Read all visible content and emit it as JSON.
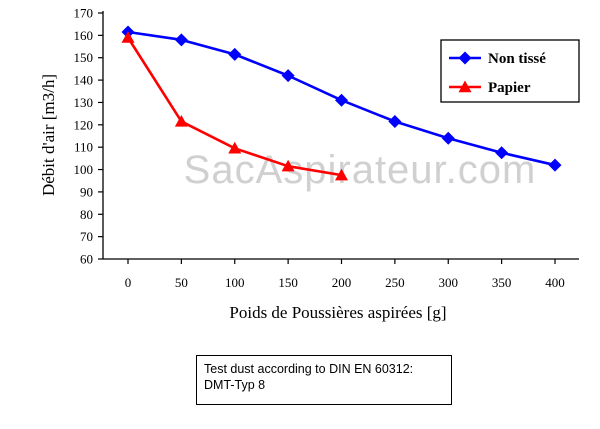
{
  "watermark": "SacAspirateur.com",
  "note": {
    "line1": "Test dust according to DIN EN 60312:",
    "line2": "DMT-Typ 8"
  },
  "chart_data": {
    "type": "line",
    "xlabel": "Poids de Poussières aspirées [g]",
    "ylabel": "Débit d'air [m3/h]",
    "xlim": [
      0,
      400
    ],
    "ylim": [
      60,
      170
    ],
    "yticks": [
      60,
      70,
      80,
      90,
      100,
      110,
      120,
      130,
      140,
      150,
      160,
      170
    ],
    "xticks": [
      0,
      50,
      100,
      150,
      200,
      250,
      300,
      350,
      400
    ],
    "grid": false,
    "legend_position": "top-right",
    "series": [
      {
        "name": "Non tissé",
        "color": "#0000ff",
        "marker": "diamond",
        "x": [
          0,
          50,
          100,
          150,
          200,
          250,
          300,
          350,
          400
        ],
        "y": [
          161.5,
          158,
          151.5,
          142,
          131,
          121.5,
          114,
          107.5,
          102
        ]
      },
      {
        "name": "Papier",
        "color": "#ff0000",
        "marker": "triangle",
        "x": [
          0,
          50,
          100,
          150,
          200
        ],
        "y": [
          159,
          121.5,
          109.5,
          101.5,
          97.5
        ]
      }
    ]
  }
}
